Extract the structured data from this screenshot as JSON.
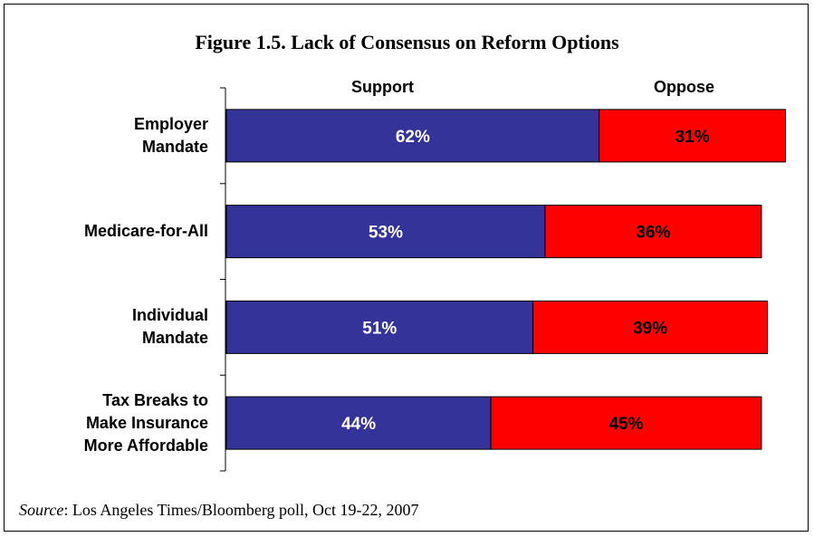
{
  "title": "Figure 1.5. Lack of Consensus on Reform Options",
  "source": {
    "prefix": "Source",
    "text": ": Los Angeles Times/Bloomberg poll, Oct 19-22, 2007"
  },
  "chart_data": {
    "type": "bar",
    "orientation": "horizontal",
    "stacked": true,
    "categories": [
      [
        "Employer",
        "Mandate"
      ],
      [
        "Medicare-for-All"
      ],
      [
        "Individual",
        "Mandate"
      ],
      [
        "Tax Breaks to",
        "Make Insurance",
        "More Affordable"
      ]
    ],
    "series": [
      {
        "name": "Support",
        "values": [
          62,
          53,
          51,
          44
        ],
        "labels": [
          "62%",
          "53%",
          "51%",
          "44%"
        ],
        "color": "#333399",
        "label_color": "#ffffff"
      },
      {
        "name": "Oppose",
        "values": [
          31,
          36,
          39,
          45
        ],
        "labels": [
          "31%",
          "36%",
          "39%",
          "45%"
        ],
        "color": "#ff0000",
        "label_color": "#000000"
      }
    ],
    "xlim": [
      0,
      93
    ],
    "grid": false,
    "legend": "top"
  }
}
